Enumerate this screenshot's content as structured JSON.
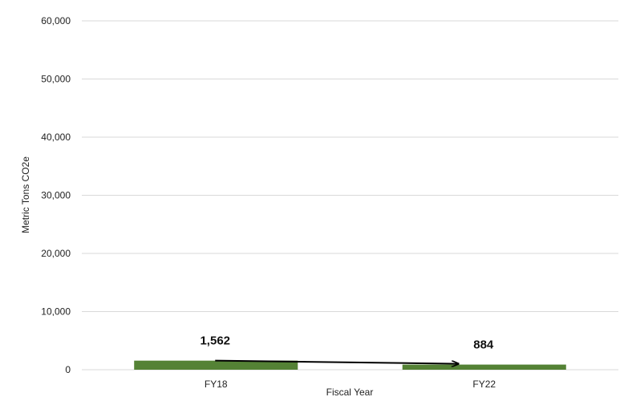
{
  "chart_data": {
    "type": "bar",
    "categories": [
      "FY18",
      "FY22"
    ],
    "values": [
      1562,
      884
    ],
    "data_labels": [
      "1,562",
      "884"
    ],
    "title": "",
    "xlabel": "Fiscal Year",
    "ylabel": "Metric Tons CO2e",
    "ylim": [
      0,
      60000
    ],
    "yticks": [
      0,
      10000,
      20000,
      30000,
      40000,
      50000,
      60000
    ],
    "ytick_labels": [
      "0",
      "10,000",
      "20,000",
      "30,000",
      "40,000",
      "50,000",
      "60,000"
    ],
    "grid": true,
    "legend": "none",
    "bar_color": "#548235",
    "trend_arrow": {
      "from": "FY18",
      "to": "FY22",
      "color": "#000000"
    }
  }
}
